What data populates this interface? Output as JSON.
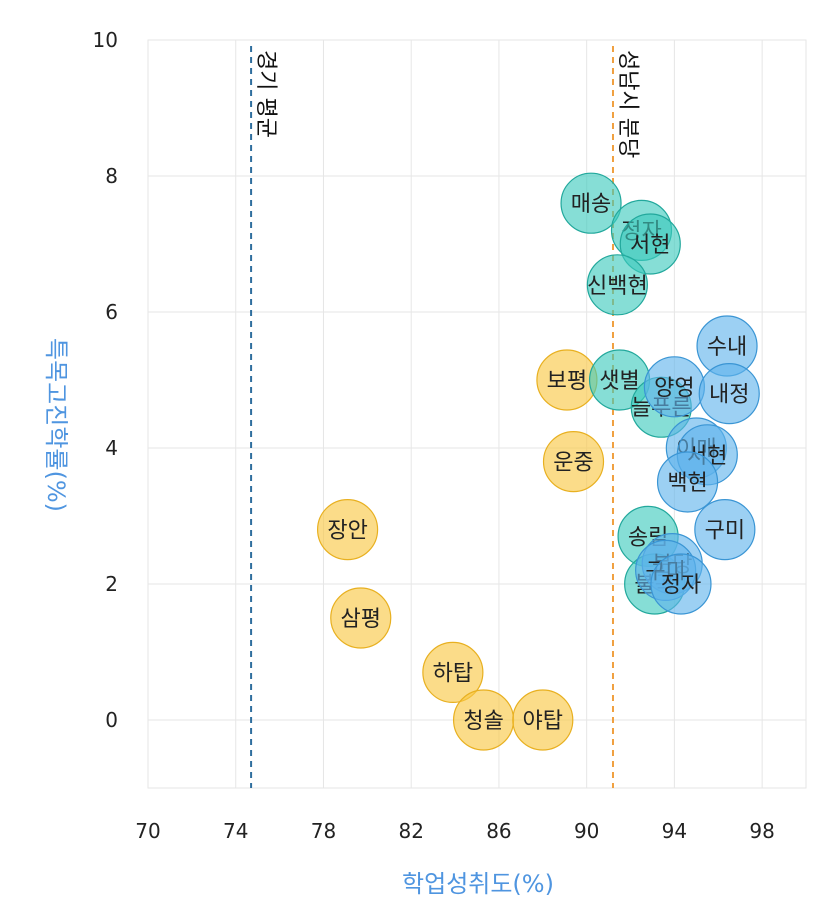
{
  "chart_data": {
    "type": "scatter",
    "xlabel": "학업성취도(%)",
    "ylabel": "특목고진학률(%)",
    "xlim": [
      70,
      100
    ],
    "ylim": [
      -1,
      10
    ],
    "xticks": [
      70,
      74,
      78,
      82,
      86,
      90,
      94,
      98
    ],
    "yticks": [
      0,
      2,
      4,
      6,
      8,
      10
    ],
    "grid": true,
    "reference_lines": [
      {
        "label": "경기 평균",
        "x": 74.7,
        "color": "#2e6e9e"
      },
      {
        "label": "성남시 분당",
        "x": 91.2,
        "color": "#f0a040"
      }
    ],
    "groups": [
      {
        "color": "#f9c740",
        "stroke": "#e8b020"
      },
      {
        "color": "#3cc9bd",
        "stroke": "#22a89c"
      },
      {
        "color": "#5fb3ec",
        "stroke": "#3a95d4"
      }
    ],
    "points": [
      {
        "label": "장안",
        "x": 79.1,
        "y": 2.8,
        "group": 0
      },
      {
        "label": "삼평",
        "x": 79.7,
        "y": 1.5,
        "group": 0
      },
      {
        "label": "하탑",
        "x": 83.9,
        "y": 0.7,
        "group": 0
      },
      {
        "label": "청솔",
        "x": 85.3,
        "y": 0.0,
        "group": 0
      },
      {
        "label": "야탑",
        "x": 88.0,
        "y": 0.0,
        "group": 0
      },
      {
        "label": "보평",
        "x": 89.1,
        "y": 5.0,
        "group": 0
      },
      {
        "label": "운중",
        "x": 89.4,
        "y": 3.8,
        "group": 0
      },
      {
        "label": "매송",
        "x": 90.2,
        "y": 7.6,
        "group": 1
      },
      {
        "label": "정자",
        "x": 92.5,
        "y": 7.2,
        "group": 1
      },
      {
        "label": "서현",
        "x": 92.9,
        "y": 7.0,
        "group": 1
      },
      {
        "label": "신백현",
        "x": 91.4,
        "y": 6.4,
        "group": 1
      },
      {
        "label": "샛별",
        "x": 91.5,
        "y": 5.0,
        "group": 1
      },
      {
        "label": "늘푸른",
        "x": 93.4,
        "y": 4.6,
        "group": 1
      },
      {
        "label": "송림",
        "x": 92.8,
        "y": 2.7,
        "group": 1
      },
      {
        "label": "불곡",
        "x": 93.1,
        "y": 2.0,
        "group": 1
      },
      {
        "label": "양영",
        "x": 94.0,
        "y": 4.9,
        "group": 2
      },
      {
        "label": "수내",
        "x": 96.4,
        "y": 5.5,
        "group": 2
      },
      {
        "label": "내정",
        "x": 96.5,
        "y": 4.8,
        "group": 2
      },
      {
        "label": "이매",
        "x": 95.0,
        "y": 4.0,
        "group": 2
      },
      {
        "label": "서현",
        "x": 95.5,
        "y": 3.9,
        "group": 2
      },
      {
        "label": "백현",
        "x": 94.6,
        "y": 3.5,
        "group": 2
      },
      {
        "label": "구미",
        "x": 96.3,
        "y": 2.8,
        "group": 2
      },
      {
        "label": "분당",
        "x": 93.9,
        "y": 2.3,
        "group": 2
      },
      {
        "label": "구미",
        "x": 93.6,
        "y": 2.2,
        "group": 2
      },
      {
        "label": "정자",
        "x": 94.3,
        "y": 2.0,
        "group": 2
      }
    ]
  }
}
